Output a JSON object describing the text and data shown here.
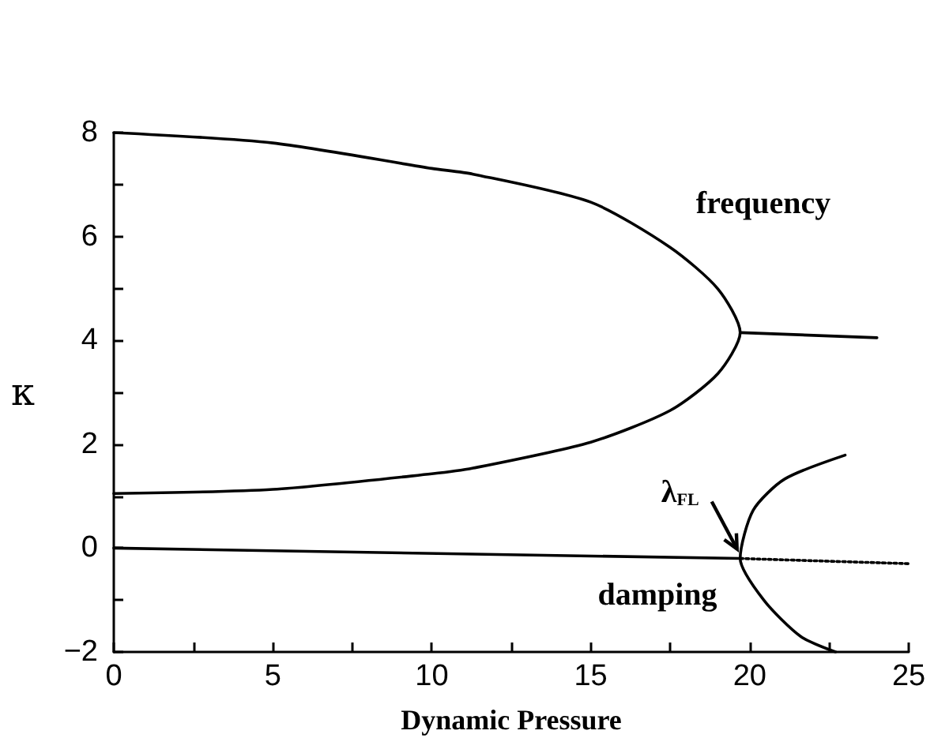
{
  "chart_data": {
    "type": "line",
    "xlabel": "Dynamic Pressure",
    "ylabel": "κ",
    "xlim": [
      0,
      25
    ],
    "xticks": [
      0,
      {
        "value": 2.5,
        "label": null
      },
      5,
      {
        "value": 7.5,
        "label": null
      },
      10,
      {
        "value": 12.5,
        "label": null
      },
      15,
      {
        "value": 17.5,
        "label": null
      },
      20,
      {
        "value": 22.5,
        "label": null
      },
      25
    ],
    "ylim": [
      -2,
      8
    ],
    "yticks": [
      -2,
      {
        "value": -1,
        "label": null
      },
      0,
      {
        "value": 1,
        "label": null
      },
      2,
      {
        "value": 3,
        "label": null
      },
      4,
      {
        "value": 5,
        "label": null
      },
      6,
      {
        "value": 7,
        "label": null
      },
      8
    ],
    "grid": false,
    "marker": "none",
    "series": [
      {
        "color": "#000000",
        "line_style": "solid",
        "x": [
          0,
          5,
          10,
          11.3,
          15,
          17.5,
          19,
          19.7,
          19,
          17.5,
          15,
          11.3,
          10,
          5,
          0
        ],
        "values": [
          8,
          7.8,
          7.31,
          7.2,
          6.66,
          5.79,
          4.99,
          4.15,
          3.36,
          2.65,
          2.04,
          1.54,
          1.43,
          1.13,
          1.05
        ]
      },
      {
        "color": "#000000",
        "line_style": "solid",
        "x": [
          19.7,
          24
        ],
        "values": [
          4.15,
          4.05
        ]
      },
      {
        "color": "#000000",
        "line_style": "solid",
        "x": [
          0,
          19.7
        ],
        "values": [
          0,
          -0.2
        ]
      },
      {
        "color": "#000000",
        "line_style": "dotted",
        "x": [
          19.7,
          25
        ],
        "values": [
          -0.2,
          -0.3
        ]
      },
      {
        "color": "#000000",
        "line_style": "solid",
        "x": [
          22.7,
          21.6,
          20.44,
          19.7,
          20.11,
          21.1,
          23
        ],
        "values": [
          -2,
          -1.7,
          -1,
          -0.2,
          0.73,
          1.33,
          1.79
        ]
      }
    ],
    "annotations": [
      "frequency",
      "damping",
      {
        "text": "λ$_{FL}$",
        "x": 19.7,
        "y": -0.2
      }
    ]
  }
}
